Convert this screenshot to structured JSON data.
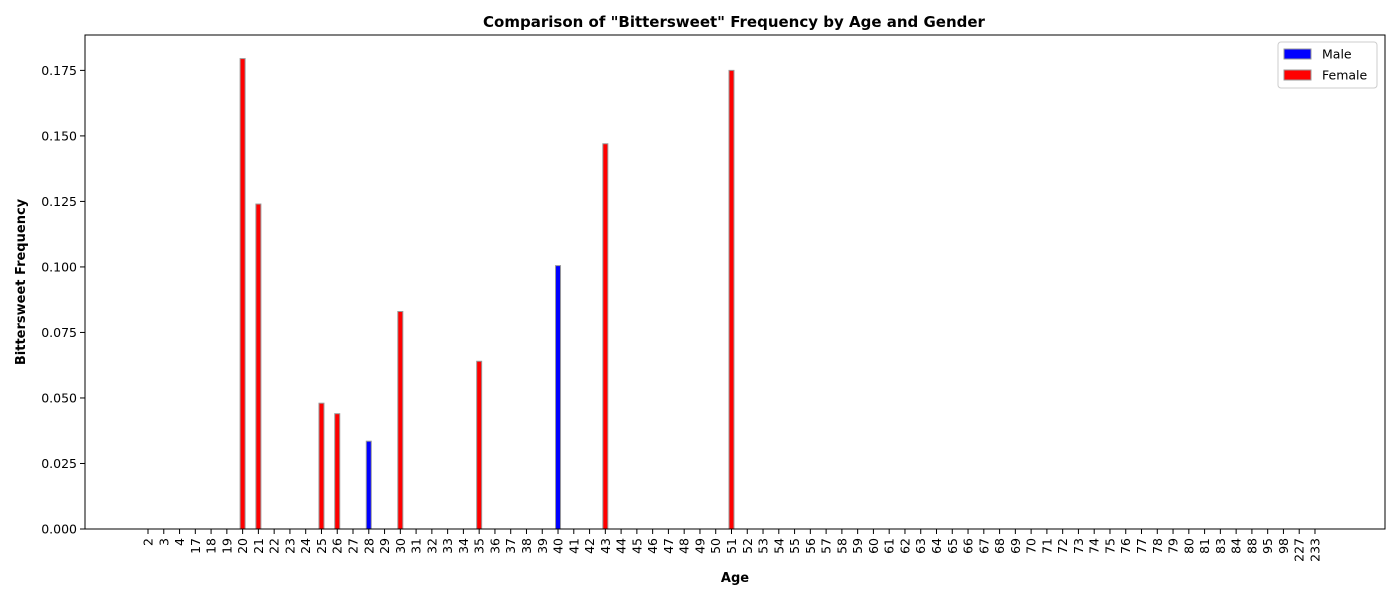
{
  "chart_data": {
    "type": "bar",
    "title": "Comparison of \"Bittersweet\" Frequency by Age and Gender",
    "xlabel": "Age",
    "ylabel": "Bittersweet Frequency",
    "ylim": [
      0,
      0.1885
    ],
    "yticks": [
      "0.000",
      "0.025",
      "0.050",
      "0.075",
      "0.100",
      "0.125",
      "0.150",
      "0.175"
    ],
    "legend_position": "top-right",
    "categories": [
      "2",
      "3",
      "4",
      "17",
      "18",
      "19",
      "20",
      "21",
      "22",
      "23",
      "24",
      "25",
      "26",
      "27",
      "28",
      "29",
      "30",
      "31",
      "32",
      "33",
      "34",
      "35",
      "36",
      "37",
      "38",
      "39",
      "40",
      "41",
      "42",
      "43",
      "44",
      "45",
      "46",
      "47",
      "48",
      "49",
      "50",
      "51",
      "52",
      "53",
      "54",
      "55",
      "56",
      "57",
      "58",
      "59",
      "60",
      "61",
      "62",
      "63",
      "64",
      "65",
      "66",
      "67",
      "68",
      "69",
      "70",
      "71",
      "72",
      "73",
      "74",
      "75",
      "76",
      "77",
      "78",
      "79",
      "80",
      "81",
      "83",
      "84",
      "88",
      "95",
      "98",
      "227",
      "233"
    ],
    "series": [
      {
        "name": "Male",
        "color": "#0000ff",
        "values": [
          0,
          0,
          0,
          0,
          0,
          0,
          0,
          0,
          0,
          0,
          0,
          0,
          0,
          0,
          0.0335,
          0,
          0,
          0,
          0,
          0,
          0,
          0,
          0,
          0,
          0,
          0,
          0.1005,
          0,
          0,
          0,
          0,
          0,
          0,
          0,
          0,
          0,
          0,
          0,
          0,
          0,
          0,
          0,
          0,
          0,
          0,
          0,
          0,
          0,
          0,
          0,
          0,
          0,
          0,
          0,
          0,
          0,
          0,
          0,
          0,
          0,
          0,
          0,
          0,
          0,
          0,
          0,
          0,
          0,
          0,
          0,
          0,
          0,
          0,
          0,
          0
        ]
      },
      {
        "name": "Female",
        "color": "#ff0000",
        "values": [
          0,
          0,
          0,
          0,
          0,
          0,
          0.1795,
          0.124,
          0,
          0,
          0,
          0.048,
          0.044,
          0,
          0,
          0,
          0.083,
          0,
          0,
          0,
          0,
          0.064,
          0,
          0,
          0,
          0,
          0,
          0,
          0,
          0.147,
          0,
          0,
          0,
          0,
          0,
          0,
          0,
          0.175,
          0,
          0,
          0,
          0,
          0,
          0,
          0,
          0,
          0,
          0,
          0,
          0,
          0,
          0,
          0,
          0,
          0,
          0,
          0,
          0,
          0,
          0,
          0,
          0,
          0,
          0,
          0,
          0,
          0,
          0,
          0,
          0,
          0,
          0,
          0,
          0,
          0
        ]
      }
    ]
  }
}
